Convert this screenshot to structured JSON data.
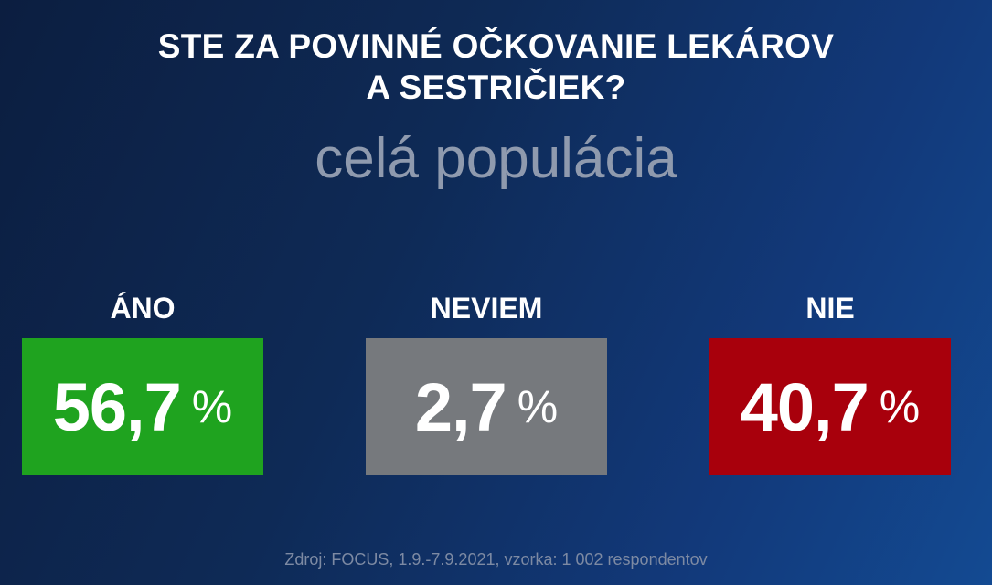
{
  "title_line1": "STE ZA POVINNÉ OČKOVANIE LEKÁROV",
  "title_line2": "A SESTRIČIEK?",
  "subtitle": "celá populácia",
  "source": "Zdroj: FOCUS, 1.9.-7.9.2021, vzorka: 1 002 respondentov",
  "chart_data": {
    "type": "table",
    "title": "STE ZA POVINNÉ OČKOVANIE LEKÁROV A SESTRIČIEK?",
    "subtitle": "celá populácia",
    "unit": "%",
    "categories": [
      "ÁNO",
      "NEVIEM",
      "NIE"
    ],
    "values": [
      56.7,
      2.7,
      40.7
    ],
    "value_labels": [
      "56,7",
      "2,7",
      "40,7"
    ],
    "colors": [
      "#1fa31f",
      "#76797d",
      "#a8000c"
    ]
  }
}
